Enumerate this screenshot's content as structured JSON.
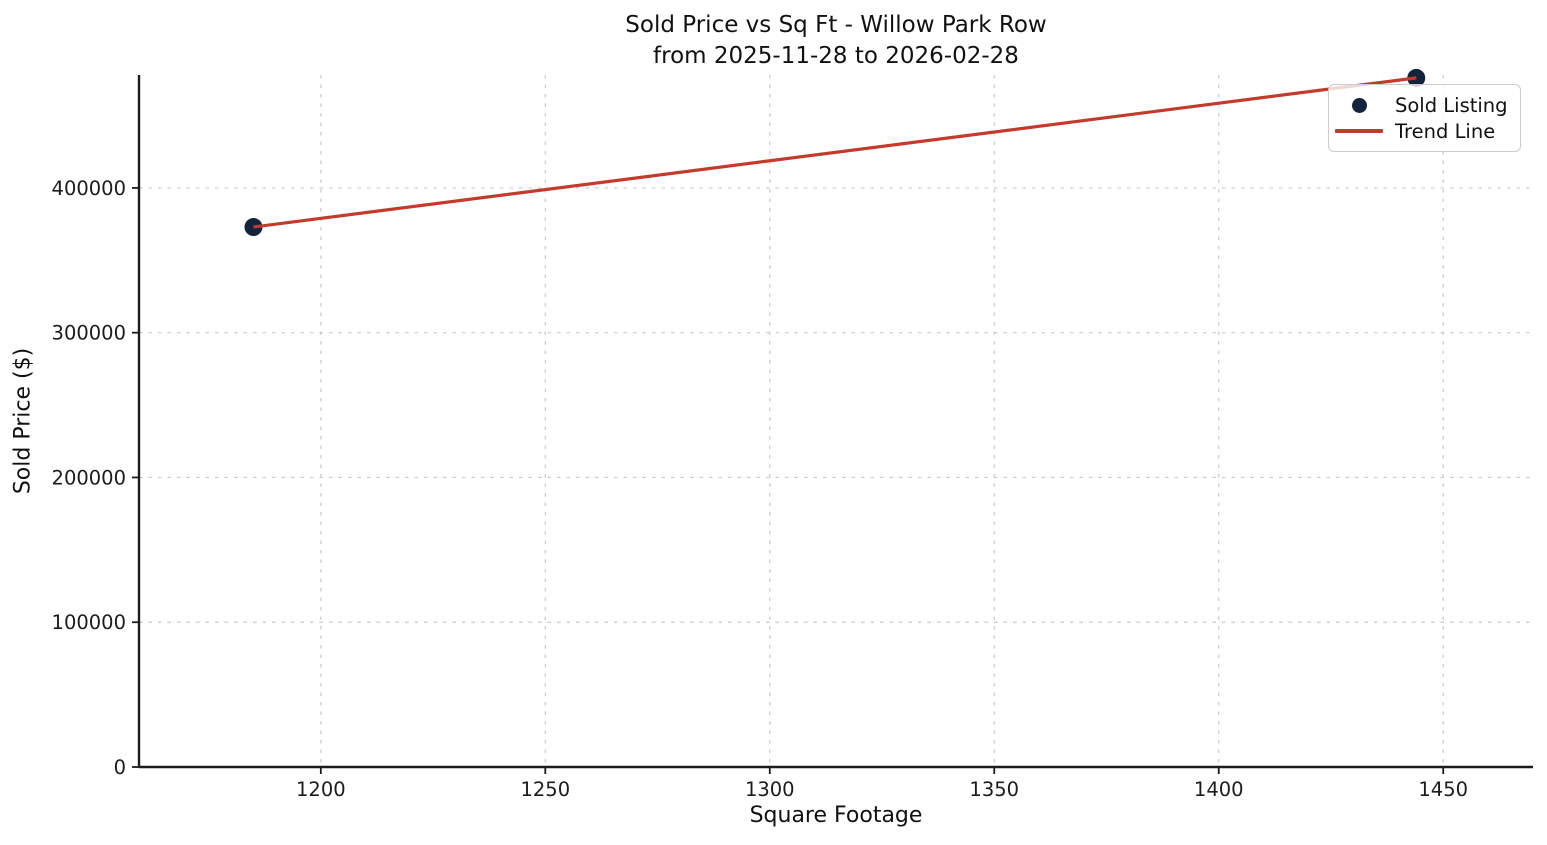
{
  "figure": {
    "title_line1": "Sold Price vs Sq Ft - Willow Park Row",
    "title_line2": "from 2025-11-28 to 2026-02-28"
  },
  "chart_data": {
    "type": "scatter",
    "title": "Sold Price vs Sq Ft - Willow Park Row\nfrom 2025-11-28 to 2026-02-28",
    "xlabel": "Square Footage",
    "ylabel": "Sold Price ($)",
    "xlim": [
      1159.5,
      1470
    ],
    "ylim": [
      0,
      478000
    ],
    "x_ticks": [
      1200,
      1250,
      1300,
      1350,
      1400,
      1450
    ],
    "y_ticks": [
      0,
      100000,
      200000,
      300000,
      400000
    ],
    "grid": true,
    "grid_style": "dashed",
    "legend_position": "upper-right",
    "series": [
      {
        "name": "Sold Listing",
        "kind": "scatter",
        "color": "#14233c",
        "x": [
          1185,
          1444
        ],
        "y": [
          373000,
          476000
        ]
      },
      {
        "name": "Trend Line",
        "kind": "line",
        "color": "#c23b2c",
        "x": [
          1185,
          1444
        ],
        "y": [
          373000,
          476000
        ]
      }
    ]
  },
  "colors": {
    "grid": "#c9c9c9",
    "spine": "#1c1c1c",
    "tick_label": "#1c1c1c",
    "legend_border": "#cccccc"
  }
}
